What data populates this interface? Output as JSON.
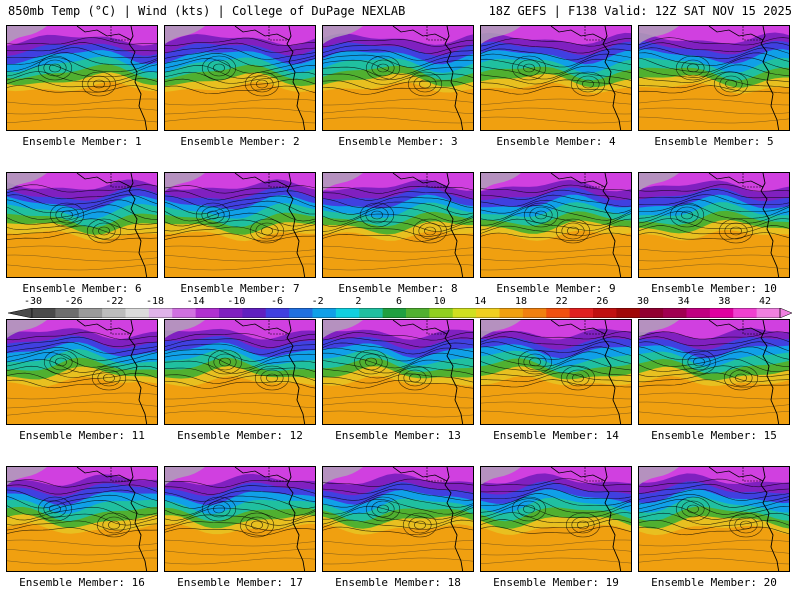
{
  "header": {
    "title": "850mb Temp (°C) | Wind (kts) | College of DuPage NEXLAB",
    "run_info": "18Z GEFS | F138 Valid: 12Z SAT NOV 15 2025"
  },
  "members": [
    {
      "label": "Ensemble Member: 1"
    },
    {
      "label": "Ensemble Member: 2"
    },
    {
      "label": "Ensemble Member: 3"
    },
    {
      "label": "Ensemble Member: 4"
    },
    {
      "label": "Ensemble Member: 5"
    },
    {
      "label": "Ensemble Member: 6"
    },
    {
      "label": "Ensemble Member: 7"
    },
    {
      "label": "Ensemble Member: 8"
    },
    {
      "label": "Ensemble Member: 9"
    },
    {
      "label": "Ensemble Member: 10"
    },
    {
      "label": "Ensemble Member: 11"
    },
    {
      "label": "Ensemble Member: 12"
    },
    {
      "label": "Ensemble Member: 13"
    },
    {
      "label": "Ensemble Member: 14"
    },
    {
      "label": "Ensemble Member: 15"
    },
    {
      "label": "Ensemble Member: 16"
    },
    {
      "label": "Ensemble Member: 17"
    },
    {
      "label": "Ensemble Member: 18"
    },
    {
      "label": "Ensemble Member: 19"
    },
    {
      "label": "Ensemble Member: 20"
    }
  ],
  "colorbar": {
    "labels": [
      "-30",
      "-26",
      "-22",
      "-18",
      "-14",
      "-10",
      "-6",
      "-2",
      "2",
      "6",
      "10",
      "14",
      "18",
      "22",
      "26",
      "30",
      "34",
      "38",
      "42"
    ],
    "colors": [
      "#4a4a4a",
      "#6e6e6e",
      "#9a9a9a",
      "#bdbdbd",
      "#dcdcdc",
      "#e0b3ea",
      "#d070e0",
      "#b030d0",
      "#8020c0",
      "#6020c0",
      "#4040e0",
      "#2070e0",
      "#10a0e8",
      "#10d0e0",
      "#20c0a0",
      "#20a040",
      "#50b030",
      "#90d020",
      "#d0e020",
      "#f0d020",
      "#f0a010",
      "#f08010",
      "#f05010",
      "#e02020",
      "#c01010",
      "#a00808",
      "#900030",
      "#a00050",
      "#c00080",
      "#e000a0",
      "#f040d0",
      "#f080e0"
    ]
  },
  "map_colors": {
    "warm": "#f0a010",
    "warm2": "#e8c020",
    "mid": "#50b030",
    "mid2": "#20c0a0",
    "cool": "#10a0e8",
    "cold": "#4040e0",
    "cold2": "#8020c0",
    "frigid": "#d040e0",
    "polar": "#b0a0b8"
  }
}
